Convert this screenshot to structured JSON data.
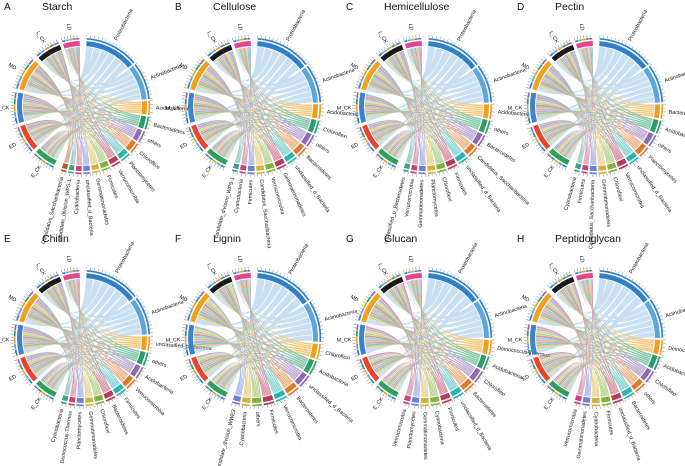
{
  "figure": {
    "panels": [
      {
        "letter": "A",
        "title": "Starch",
        "groups": [
          "L_CK",
          "LD",
          "MD",
          "M_CK",
          "ED",
          "E_CK"
        ],
        "taxa": [
          "Proteobacteria",
          "Actinobacteria",
          "Acidobacteria",
          "Bacteroidetes",
          "others",
          "Chloroflexi",
          "Planctomycetes",
          "Verrucomicrobia",
          "Firmicutes",
          "Gemmatimonadetes",
          "unclassified_d_Bacteria",
          "Cyanobacteria",
          "candidate_division_WPS-1",
          "Candidatus_Saccharibacteria"
        ]
      },
      {
        "letter": "B",
        "title": "Cellulose",
        "groups": [
          "L_CK",
          "LD",
          "MD",
          "M_CK",
          "ED",
          "E_CK"
        ],
        "taxa": [
          "Proteobacteria",
          "Actinobacteria",
          "Acidobacteria",
          "Chloroflexi",
          "others",
          "Bacteroidetes",
          "unclassified_d_Bacteria",
          "Gemmatimonadetes",
          "Verrucomicrobia",
          "Candidatus_Saccharibacteria",
          "Firmicutes",
          "Cyanobacteria",
          "candidate_division_WPS-1"
        ]
      },
      {
        "letter": "C",
        "title": "Hemicellulose",
        "groups": [
          "L_CK",
          "LD",
          "MD",
          "M_CK",
          "ED",
          "E_CK"
        ],
        "taxa": [
          "Proteobacteria",
          "Actinobacteria",
          "Acidobacteria",
          "others",
          "Bacteroidetes",
          "Candidatus_Saccharibacteria",
          "unclassified_d_Bacteria",
          "Firmicutes",
          "Chloroflexi",
          "Planctomycetes",
          "Gemmatimonadetes",
          "Verrucomicrobia",
          "unclassified_p_Bacteroidetes"
        ]
      },
      {
        "letter": "D",
        "title": "Pectin",
        "groups": [
          "L_CK",
          "LD",
          "MD",
          "M_CK",
          "ED",
          "E_CK"
        ],
        "taxa": [
          "Proteobacteria",
          "Actinobacteria",
          "Bacteroidetes",
          "Acidobacteria",
          "others",
          "Planctomycetes",
          "unclassified_d_Bacteria",
          "Verrucomicrobia",
          "Chloroflexi",
          "Gemmatimonadetes",
          "Candidatus_Saccharibacteria",
          "Firmicutes",
          "Cyanobacteria"
        ]
      },
      {
        "letter": "E",
        "title": "Chitin",
        "groups": [
          "L_CK",
          "LD",
          "MD",
          "M_CK",
          "ED",
          "E_CK"
        ],
        "taxa": [
          "Proteobacteria",
          "Actinobacteria",
          "unclassified_d_Bacteria",
          "others",
          "Acidobacteria",
          "Verrucomicrobia",
          "Firmicutes",
          "Bacteroidetes",
          "Chloroflexi",
          "Gemmatimonadetes",
          "Planctomycetes",
          "Deinococcus-Thermus",
          "Cyanobacteria"
        ]
      },
      {
        "letter": "F",
        "title": "Lignin",
        "groups": [
          "L_CK",
          "LD",
          "MD",
          "M_CK",
          "ED",
          "E_CK"
        ],
        "taxa": [
          "Proteobacteria",
          "Actinobacteria",
          "Chloroflexi",
          "Acidobacteria",
          "unclassified_d_Bacteria",
          "Bacteroidetes",
          "Verrucomicrobia",
          "Firmicutes",
          "others",
          "Cyanobacteria",
          "candidate_division_WWE3"
        ]
      },
      {
        "letter": "G",
        "title": "Glucan",
        "groups": [
          "L_CK",
          "LD",
          "MD",
          "M_CK",
          "ED",
          "E_CK"
        ],
        "taxa": [
          "Proteobacteria",
          "Actinobacteria",
          "Deinococcus-Thermus",
          "Acidobacteria",
          "Chloroflexi",
          "Bacteroidetes",
          "unclassified_d_Bacteria",
          "Firmicutes",
          "Cyanobacteria",
          "Gemmatimonadetes",
          "Planctomycetes",
          "Verrucomicrobia"
        ]
      },
      {
        "letter": "H",
        "title": "Peptidoglycan",
        "groups": [
          "L_CK",
          "LD",
          "MD",
          "M_CK",
          "ED",
          "E_CK"
        ],
        "taxa": [
          "Proteobacteria",
          "Actinobacteria",
          "Deinococcus-Thermus",
          "Acidobacteria",
          "Chloroflexi",
          "others",
          "Bacteroidetes",
          "unclassified_d_Bacteria",
          "Firmicutes",
          "Cyanobacteria",
          "Gemmatimonadetes",
          "Verrucomicrobia"
        ]
      }
    ],
    "group_colors": {
      "L_CK": "#1a1a1a",
      "LD": "#e0468f",
      "MD": "#f2a11f",
      "M_CK": "#3e82c8",
      "ED": "#e8452c",
      "E_CK": "#2f9f5a"
    },
    "taxon_colors": [
      "#2f80c7",
      "#5aa6dd",
      "#f0a020",
      "#2a9d6a",
      "#8c6bb1",
      "#e07a2b",
      "#2cb5b0",
      "#b83a5c",
      "#7fb13d",
      "#d6b13a",
      "#6a7fd1",
      "#c6447a",
      "#3c9e8f",
      "#a35c2f"
    ],
    "ribbon_color": "#9ec7e8"
  }
}
